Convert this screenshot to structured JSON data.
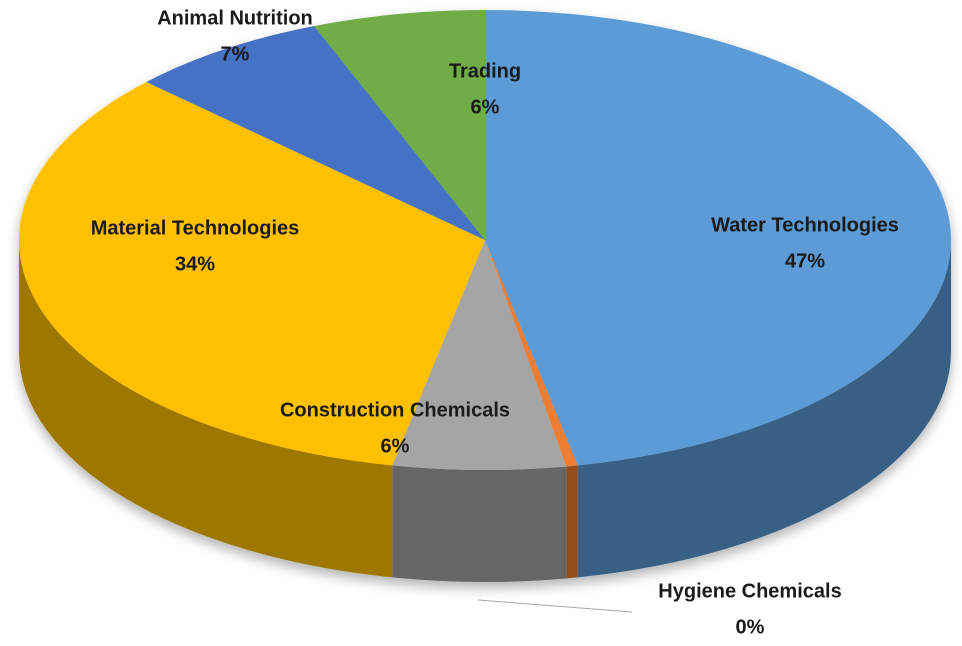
{
  "chart_data": {
    "type": "pie3d",
    "categories": [
      "Water Technologies",
      "Hygiene Chemicals",
      "Construction Chemicals",
      "Material Technologies",
      "Animal Nutrition",
      "Trading"
    ],
    "values": [
      47,
      0.4,
      6,
      34,
      7,
      6
    ],
    "value_labels": [
      "47%",
      "0%",
      "6%",
      "34%",
      "7%",
      "6%"
    ],
    "colors": [
      "#5b9bd5",
      "#ed7d31",
      "#a5a5a5",
      "#ffc000",
      "#4472c4",
      "#70ad47"
    ]
  }
}
